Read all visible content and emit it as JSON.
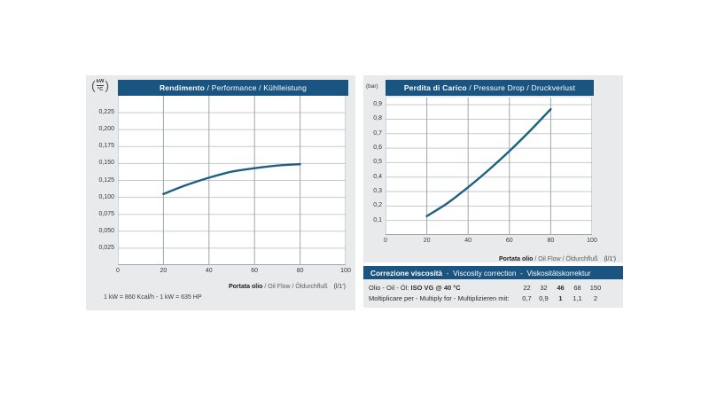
{
  "colors": {
    "accent_bar": "#1a5480",
    "bar_text": "#ffffff",
    "panel_bg": "#e8eaec",
    "plot_bg": "#ffffff",
    "grid_horizontal": "#c7cacd",
    "grid_vertical": "#9fa5ab",
    "curve": "#1e6084"
  },
  "chart_data": [
    {
      "id": "performance",
      "type": "line",
      "title_bold": "Rendimento",
      "title_rest": " / Performance / Kühlleistung",
      "y_unit_numerator": "kW",
      "y_unit_denominator": "°C",
      "xlabel_bold": "Portata olio",
      "xlabel_rest": " / Oil Flow / Öldurchfluß",
      "x_unit": "(l/1')",
      "xlim": [
        0,
        100
      ],
      "ylim": [
        0,
        0.25
      ],
      "grid": true,
      "legend": "none",
      "xticks": [
        {
          "v": 0,
          "label": "0"
        },
        {
          "v": 20,
          "label": "20"
        },
        {
          "v": 40,
          "label": "40"
        },
        {
          "v": 60,
          "label": "60"
        },
        {
          "v": 80,
          "label": "80"
        },
        {
          "v": 100,
          "label": "100"
        }
      ],
      "yticks": [
        {
          "v": 0.225,
          "label": "0,225"
        },
        {
          "v": 0.2,
          "label": "0,200"
        },
        {
          "v": 0.175,
          "label": "0,175"
        },
        {
          "v": 0.15,
          "label": "0,150"
        },
        {
          "v": 0.125,
          "label": "0,125"
        },
        {
          "v": 0.1,
          "label": "0,100"
        },
        {
          "v": 0.075,
          "label": "0,075"
        },
        {
          "v": 0.05,
          "label": "0,050"
        },
        {
          "v": 0.025,
          "label": "0,025"
        }
      ],
      "series": [
        {
          "name": "cooling-performance-curve",
          "points": [
            [
              20,
              0.105
            ],
            [
              30,
              0.118
            ],
            [
              40,
              0.129
            ],
            [
              50,
              0.138
            ],
            [
              60,
              0.143
            ],
            [
              70,
              0.147
            ],
            [
              80,
              0.149
            ]
          ]
        }
      ],
      "note": "1 kW = 860 Kcal/h  - 1 kW = 635 HP"
    },
    {
      "id": "pressure-drop",
      "type": "line",
      "title_bold": "Perdita di Carico",
      "title_rest": " / Pressure Drop / Druckverlust",
      "y_unit": "(bar)",
      "xlabel_bold": "Portata olio",
      "xlabel_rest": " / Oil Flow / Öldurchfluß",
      "x_unit": "(l/1')",
      "xlim": [
        0,
        100
      ],
      "ylim": [
        0,
        0.95
      ],
      "grid": true,
      "legend": "none",
      "xticks": [
        {
          "v": 0,
          "label": "0"
        },
        {
          "v": 20,
          "label": "20"
        },
        {
          "v": 40,
          "label": "40"
        },
        {
          "v": 60,
          "label": "60"
        },
        {
          "v": 80,
          "label": "80"
        },
        {
          "v": 100,
          "label": "100"
        }
      ],
      "yticks": [
        {
          "v": 0.9,
          "label": "0,9"
        },
        {
          "v": 0.8,
          "label": "0,8"
        },
        {
          "v": 0.7,
          "label": "0,7"
        },
        {
          "v": 0.6,
          "label": "0,6"
        },
        {
          "v": 0.5,
          "label": "0,5"
        },
        {
          "v": 0.4,
          "label": "0,4"
        },
        {
          "v": 0.3,
          "label": "0,3"
        },
        {
          "v": 0.2,
          "label": "0,2"
        },
        {
          "v": 0.1,
          "label": "0,1"
        }
      ],
      "series": [
        {
          "name": "pressure-drop-curve",
          "points": [
            [
              20,
              0.13
            ],
            [
              30,
              0.22
            ],
            [
              40,
              0.33
            ],
            [
              50,
              0.45
            ],
            [
              60,
              0.58
            ],
            [
              70,
              0.72
            ],
            [
              80,
              0.87
            ]
          ]
        }
      ]
    }
  ],
  "viscosity_table": {
    "header_bold": "Correzione viscosità",
    "header_rest": "  -  Viscosity correction  -  Viskositätskorrektur",
    "rows": [
      {
        "label_plain": "Olio - Oil - Öl: ",
        "label_bold": "ISO VG @ 40 °C",
        "values": [
          "22",
          "32",
          "46",
          "68",
          "150"
        ],
        "bold_value_index": 2
      },
      {
        "label_plain": "Moltiplicare per - Multiply for - Multiplizieren mit:",
        "label_bold": "",
        "values": [
          "0,7",
          "0,9",
          "1",
          "1,1",
          "2"
        ],
        "bold_value_index": 2
      }
    ]
  }
}
